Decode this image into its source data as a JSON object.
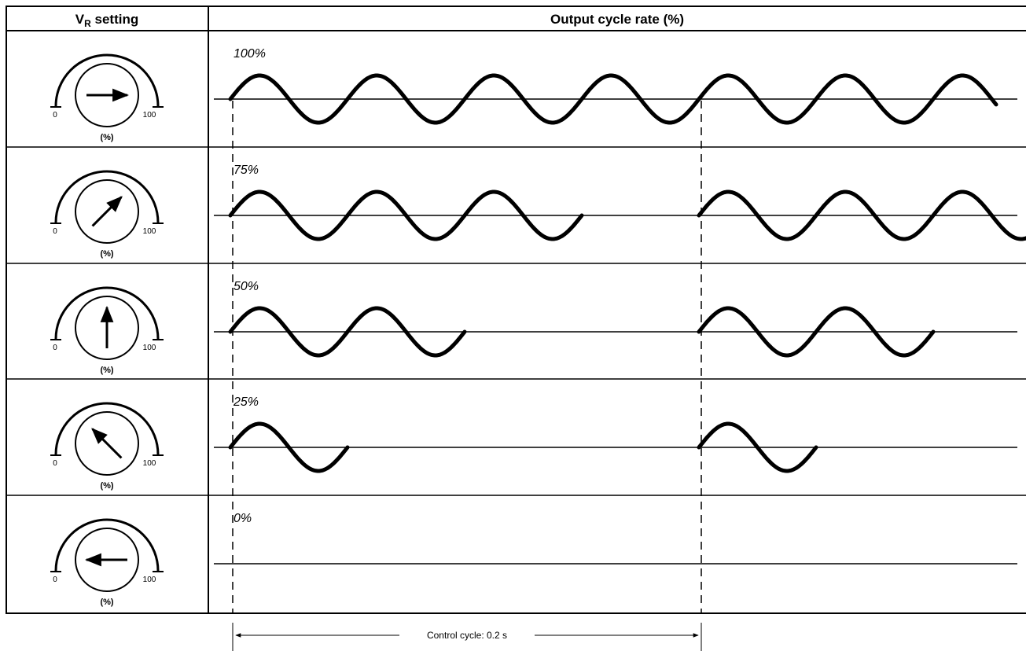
{
  "header": {
    "vr_label_main": "V",
    "vr_label_sub": "R",
    "vr_label_rest": " setting",
    "output_label": "Output cycle rate (%)"
  },
  "dial": {
    "min_label": "0",
    "max_label": "100",
    "unit_label": "(%)"
  },
  "rows": [
    {
      "percent_label": "100%",
      "rate": 100
    },
    {
      "percent_label": "75%",
      "rate": 75
    },
    {
      "percent_label": "50%",
      "rate": 50
    },
    {
      "percent_label": "25%",
      "rate": 25
    },
    {
      "percent_label": "0%",
      "rate": 0
    }
  ],
  "control_cycle_label": "Control cycle: 0.2 s",
  "colors": {
    "line": "#000000",
    "background": "#ffffff"
  }
}
